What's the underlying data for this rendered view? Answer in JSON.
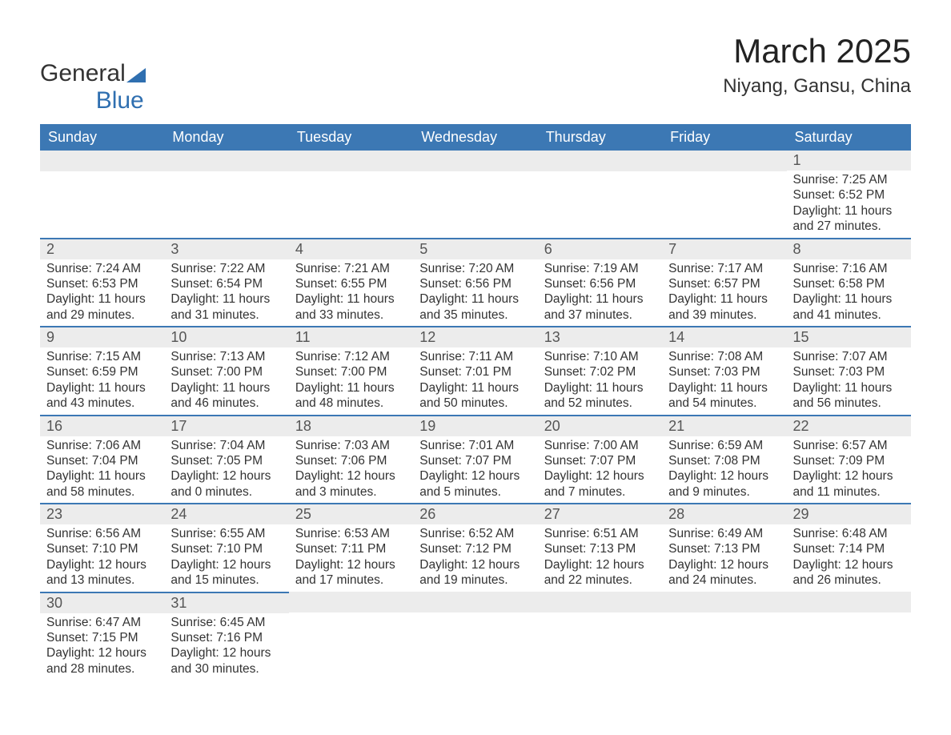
{
  "logo": {
    "word1": "General",
    "word2": "Blue"
  },
  "header": {
    "month_year": "March 2025",
    "location": "Niyang, Gansu, China"
  },
  "colors": {
    "header_bg": "#3c78b4",
    "header_text": "#ffffff",
    "daynum_bg": "#ececec",
    "row_divider": "#3c78b4",
    "body_text": "#333333",
    "logo_accent": "#2f6fb0",
    "page_bg": "#ffffff"
  },
  "typography": {
    "title_fontsize": 42,
    "subtitle_fontsize": 24,
    "dayheader_fontsize": 18,
    "daynum_fontsize": 18,
    "body_fontsize": 15.5
  },
  "calendar": {
    "type": "table",
    "columns": [
      "Sunday",
      "Monday",
      "Tuesday",
      "Wednesday",
      "Thursday",
      "Friday",
      "Saturday"
    ],
    "weeks": [
      [
        null,
        null,
        null,
        null,
        null,
        null,
        {
          "day": "1",
          "sunrise": "Sunrise: 7:25 AM",
          "sunset": "Sunset: 6:52 PM",
          "daylight1": "Daylight: 11 hours",
          "daylight2": "and 27 minutes."
        }
      ],
      [
        {
          "day": "2",
          "sunrise": "Sunrise: 7:24 AM",
          "sunset": "Sunset: 6:53 PM",
          "daylight1": "Daylight: 11 hours",
          "daylight2": "and 29 minutes."
        },
        {
          "day": "3",
          "sunrise": "Sunrise: 7:22 AM",
          "sunset": "Sunset: 6:54 PM",
          "daylight1": "Daylight: 11 hours",
          "daylight2": "and 31 minutes."
        },
        {
          "day": "4",
          "sunrise": "Sunrise: 7:21 AM",
          "sunset": "Sunset: 6:55 PM",
          "daylight1": "Daylight: 11 hours",
          "daylight2": "and 33 minutes."
        },
        {
          "day": "5",
          "sunrise": "Sunrise: 7:20 AM",
          "sunset": "Sunset: 6:56 PM",
          "daylight1": "Daylight: 11 hours",
          "daylight2": "and 35 minutes."
        },
        {
          "day": "6",
          "sunrise": "Sunrise: 7:19 AM",
          "sunset": "Sunset: 6:56 PM",
          "daylight1": "Daylight: 11 hours",
          "daylight2": "and 37 minutes."
        },
        {
          "day": "7",
          "sunrise": "Sunrise: 7:17 AM",
          "sunset": "Sunset: 6:57 PM",
          "daylight1": "Daylight: 11 hours",
          "daylight2": "and 39 minutes."
        },
        {
          "day": "8",
          "sunrise": "Sunrise: 7:16 AM",
          "sunset": "Sunset: 6:58 PM",
          "daylight1": "Daylight: 11 hours",
          "daylight2": "and 41 minutes."
        }
      ],
      [
        {
          "day": "9",
          "sunrise": "Sunrise: 7:15 AM",
          "sunset": "Sunset: 6:59 PM",
          "daylight1": "Daylight: 11 hours",
          "daylight2": "and 43 minutes."
        },
        {
          "day": "10",
          "sunrise": "Sunrise: 7:13 AM",
          "sunset": "Sunset: 7:00 PM",
          "daylight1": "Daylight: 11 hours",
          "daylight2": "and 46 minutes."
        },
        {
          "day": "11",
          "sunrise": "Sunrise: 7:12 AM",
          "sunset": "Sunset: 7:00 PM",
          "daylight1": "Daylight: 11 hours",
          "daylight2": "and 48 minutes."
        },
        {
          "day": "12",
          "sunrise": "Sunrise: 7:11 AM",
          "sunset": "Sunset: 7:01 PM",
          "daylight1": "Daylight: 11 hours",
          "daylight2": "and 50 minutes."
        },
        {
          "day": "13",
          "sunrise": "Sunrise: 7:10 AM",
          "sunset": "Sunset: 7:02 PM",
          "daylight1": "Daylight: 11 hours",
          "daylight2": "and 52 minutes."
        },
        {
          "day": "14",
          "sunrise": "Sunrise: 7:08 AM",
          "sunset": "Sunset: 7:03 PM",
          "daylight1": "Daylight: 11 hours",
          "daylight2": "and 54 minutes."
        },
        {
          "day": "15",
          "sunrise": "Sunrise: 7:07 AM",
          "sunset": "Sunset: 7:03 PM",
          "daylight1": "Daylight: 11 hours",
          "daylight2": "and 56 minutes."
        }
      ],
      [
        {
          "day": "16",
          "sunrise": "Sunrise: 7:06 AM",
          "sunset": "Sunset: 7:04 PM",
          "daylight1": "Daylight: 11 hours",
          "daylight2": "and 58 minutes."
        },
        {
          "day": "17",
          "sunrise": "Sunrise: 7:04 AM",
          "sunset": "Sunset: 7:05 PM",
          "daylight1": "Daylight: 12 hours",
          "daylight2": "and 0 minutes."
        },
        {
          "day": "18",
          "sunrise": "Sunrise: 7:03 AM",
          "sunset": "Sunset: 7:06 PM",
          "daylight1": "Daylight: 12 hours",
          "daylight2": "and 3 minutes."
        },
        {
          "day": "19",
          "sunrise": "Sunrise: 7:01 AM",
          "sunset": "Sunset: 7:07 PM",
          "daylight1": "Daylight: 12 hours",
          "daylight2": "and 5 minutes."
        },
        {
          "day": "20",
          "sunrise": "Sunrise: 7:00 AM",
          "sunset": "Sunset: 7:07 PM",
          "daylight1": "Daylight: 12 hours",
          "daylight2": "and 7 minutes."
        },
        {
          "day": "21",
          "sunrise": "Sunrise: 6:59 AM",
          "sunset": "Sunset: 7:08 PM",
          "daylight1": "Daylight: 12 hours",
          "daylight2": "and 9 minutes."
        },
        {
          "day": "22",
          "sunrise": "Sunrise: 6:57 AM",
          "sunset": "Sunset: 7:09 PM",
          "daylight1": "Daylight: 12 hours",
          "daylight2": "and 11 minutes."
        }
      ],
      [
        {
          "day": "23",
          "sunrise": "Sunrise: 6:56 AM",
          "sunset": "Sunset: 7:10 PM",
          "daylight1": "Daylight: 12 hours",
          "daylight2": "and 13 minutes."
        },
        {
          "day": "24",
          "sunrise": "Sunrise: 6:55 AM",
          "sunset": "Sunset: 7:10 PM",
          "daylight1": "Daylight: 12 hours",
          "daylight2": "and 15 minutes."
        },
        {
          "day": "25",
          "sunrise": "Sunrise: 6:53 AM",
          "sunset": "Sunset: 7:11 PM",
          "daylight1": "Daylight: 12 hours",
          "daylight2": "and 17 minutes."
        },
        {
          "day": "26",
          "sunrise": "Sunrise: 6:52 AM",
          "sunset": "Sunset: 7:12 PM",
          "daylight1": "Daylight: 12 hours",
          "daylight2": "and 19 minutes."
        },
        {
          "day": "27",
          "sunrise": "Sunrise: 6:51 AM",
          "sunset": "Sunset: 7:13 PM",
          "daylight1": "Daylight: 12 hours",
          "daylight2": "and 22 minutes."
        },
        {
          "day": "28",
          "sunrise": "Sunrise: 6:49 AM",
          "sunset": "Sunset: 7:13 PM",
          "daylight1": "Daylight: 12 hours",
          "daylight2": "and 24 minutes."
        },
        {
          "day": "29",
          "sunrise": "Sunrise: 6:48 AM",
          "sunset": "Sunset: 7:14 PM",
          "daylight1": "Daylight: 12 hours",
          "daylight2": "and 26 minutes."
        }
      ],
      [
        {
          "day": "30",
          "sunrise": "Sunrise: 6:47 AM",
          "sunset": "Sunset: 7:15 PM",
          "daylight1": "Daylight: 12 hours",
          "daylight2": "and 28 minutes."
        },
        {
          "day": "31",
          "sunrise": "Sunrise: 6:45 AM",
          "sunset": "Sunset: 7:16 PM",
          "daylight1": "Daylight: 12 hours",
          "daylight2": "and 30 minutes."
        },
        null,
        null,
        null,
        null,
        null
      ]
    ]
  }
}
